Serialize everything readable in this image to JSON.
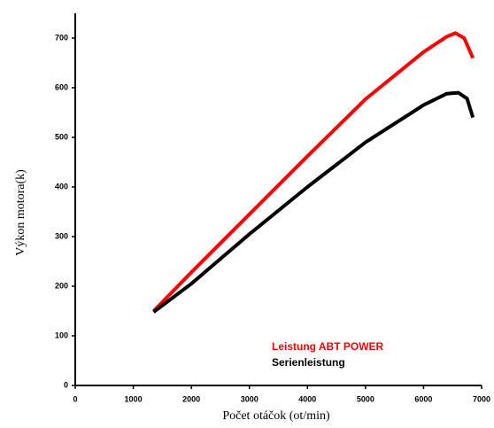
{
  "chart_data": {
    "type": "line",
    "x_label": "Počet otáčok (ot/min)",
    "y_label": "Výkon motora(k)",
    "xlim": [
      0,
      7000
    ],
    "xticks": [
      0,
      1000,
      2000,
      3000,
      4000,
      5000,
      6000,
      7000
    ],
    "ylim": [
      0,
      750
    ],
    "yticks": [
      0,
      100,
      200,
      300,
      400,
      500,
      600,
      700
    ],
    "series": [
      {
        "name": "Leistung ABT POWER",
        "color": "#ff0000",
        "x": [
          1350,
          2000,
          3000,
          4000,
          5000,
          6000,
          6400,
          6550,
          6700,
          6850
        ],
        "values": [
          150,
          228,
          345,
          462,
          577,
          672,
          703,
          710,
          700,
          660
        ]
      },
      {
        "name": "Serienleistung",
        "color": "#000000",
        "x": [
          1350,
          2000,
          3000,
          4000,
          5000,
          6000,
          6400,
          6600,
          6750,
          6850
        ],
        "values": [
          148,
          205,
          305,
          400,
          490,
          565,
          588,
          590,
          578,
          540
        ]
      }
    ]
  }
}
